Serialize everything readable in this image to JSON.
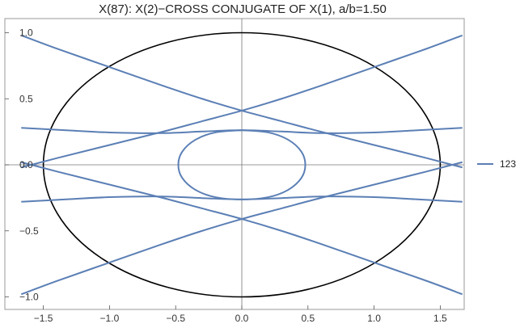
{
  "chart_data": {
    "type": "line",
    "title": "X(87): X(2)−CROSS CONJUGATE OF X(1), a/b=1.50",
    "xlim": [
      -1.667,
      1.667
    ],
    "ylim": [
      -1.05,
      1.05
    ],
    "x_ticks": [
      -1.5,
      -1.0,
      -0.5,
      0.0,
      0.5,
      1.0,
      1.5
    ],
    "x_tick_labels": [
      "−1.5",
      "−1.0",
      "−0.5",
      "0.0",
      "0.5",
      "1.0",
      "1.5"
    ],
    "y_ticks": [
      1.0,
      0.5,
      0.0,
      -0.5,
      -1.0
    ],
    "y_tick_labels": [
      "1.0",
      "0.5",
      "0.0",
      "−0.5",
      "−1.0"
    ],
    "colors": {
      "curve": "#5b7fb5",
      "ellipse": "#000000",
      "axis": "#777777",
      "frame": "#9a9a9a"
    },
    "ellipse": {
      "a": 1.5,
      "b": 1.0
    },
    "legend": {
      "placement": "right",
      "entries": [
        {
          "label": "123",
          "color": "#5b7fb5"
        }
      ]
    },
    "series": [
      {
        "name": "123",
        "x": [
          -1.667,
          -1.4,
          -1.0,
          -0.6,
          -0.3,
          0.0,
          0.3,
          0.6,
          1.0,
          1.4,
          1.667
        ],
        "y": [
          0.98,
          0.88,
          0.74,
          0.6,
          0.5,
          0.41,
          0.33,
          0.25,
          0.15,
          0.05,
          -0.02
        ]
      },
      {
        "name": "123",
        "x": [
          -1.667,
          -1.4,
          -1.0,
          -0.6,
          -0.3,
          0.0,
          0.3,
          0.6,
          1.0,
          1.4,
          1.667
        ],
        "y": [
          -0.02,
          0.05,
          0.15,
          0.25,
          0.33,
          0.41,
          0.5,
          0.6,
          0.74,
          0.88,
          0.98
        ]
      },
      {
        "name": "123",
        "x": [
          -1.667,
          -1.4,
          -1.0,
          -0.6,
          -0.3,
          0.0,
          0.3,
          0.6,
          1.0,
          1.4,
          1.667
        ],
        "y": [
          0.02,
          -0.05,
          -0.15,
          -0.25,
          -0.33,
          -0.41,
          -0.5,
          -0.6,
          -0.74,
          -0.88,
          -0.98
        ]
      },
      {
        "name": "123",
        "x": [
          -1.667,
          -1.4,
          -1.0,
          -0.6,
          -0.3,
          0.0,
          0.3,
          0.6,
          1.0,
          1.4,
          1.667
        ],
        "y": [
          -0.98,
          -0.88,
          -0.74,
          -0.6,
          -0.5,
          -0.41,
          -0.33,
          -0.25,
          -0.15,
          -0.05,
          0.02
        ]
      },
      {
        "name": "123",
        "x": [
          -1.667,
          -1.3,
          -1.0,
          -0.6,
          -0.3,
          0.0,
          0.3,
          0.6,
          1.0,
          1.3,
          1.667
        ],
        "y": [
          0.28,
          0.26,
          0.245,
          0.24,
          0.252,
          0.262,
          0.252,
          0.24,
          0.245,
          0.26,
          0.28
        ]
      },
      {
        "name": "123",
        "x": [
          -1.667,
          -1.3,
          -1.0,
          -0.6,
          -0.3,
          0.0,
          0.3,
          0.6,
          1.0,
          1.3,
          1.667
        ],
        "y": [
          -0.28,
          -0.26,
          -0.245,
          -0.24,
          -0.252,
          -0.262,
          -0.252,
          -0.24,
          -0.245,
          -0.26,
          -0.28
        ]
      },
      {
        "name": "123",
        "x": [
          0.0,
          0.2,
          0.35,
          0.45,
          0.48,
          0.45,
          0.35,
          0.2,
          0.0,
          -0.2,
          -0.35,
          -0.45,
          -0.48,
          -0.45,
          -0.35,
          -0.2,
          0.0
        ],
        "y": [
          0.262,
          0.245,
          0.19,
          0.1,
          0.0,
          -0.1,
          -0.19,
          -0.245,
          -0.262,
          -0.245,
          -0.19,
          -0.1,
          0.0,
          0.1,
          0.19,
          0.245,
          0.262
        ]
      }
    ]
  }
}
